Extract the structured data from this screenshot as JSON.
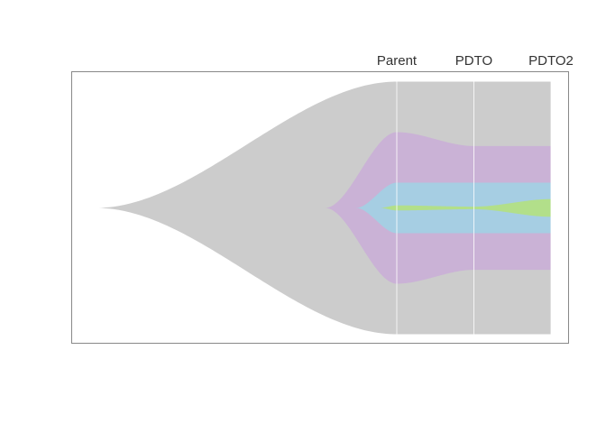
{
  "chart_data": {
    "type": "area",
    "subtype": "fish-plot",
    "title": "",
    "xlabel": "",
    "ylabel": "",
    "x_timepoints": [
      {
        "label": "Parent",
        "x": 0
      },
      {
        "label": "PDTO",
        "x": 1
      },
      {
        "label": "PDTO2",
        "x": 2
      }
    ],
    "grid": true,
    "legend": "none",
    "clones": [
      {
        "id": 1,
        "parent": null,
        "origin_x": -3.9,
        "color": "#cccccc",
        "fractions": [
          100,
          100,
          100
        ]
      },
      {
        "id": 2,
        "parent": 1,
        "origin_x": -0.93,
        "color": "#cab2d6",
        "fractions": [
          60,
          49,
          49
        ]
      },
      {
        "id": 3,
        "parent": 2,
        "origin_x": -0.53,
        "color": "#a6cee3",
        "fractions": [
          20,
          20,
          20
        ]
      },
      {
        "id": 4,
        "parent": 3,
        "origin_x": -0.22,
        "color": "#b2df8a",
        "fractions": [
          2,
          1,
          7
        ]
      }
    ]
  }
}
